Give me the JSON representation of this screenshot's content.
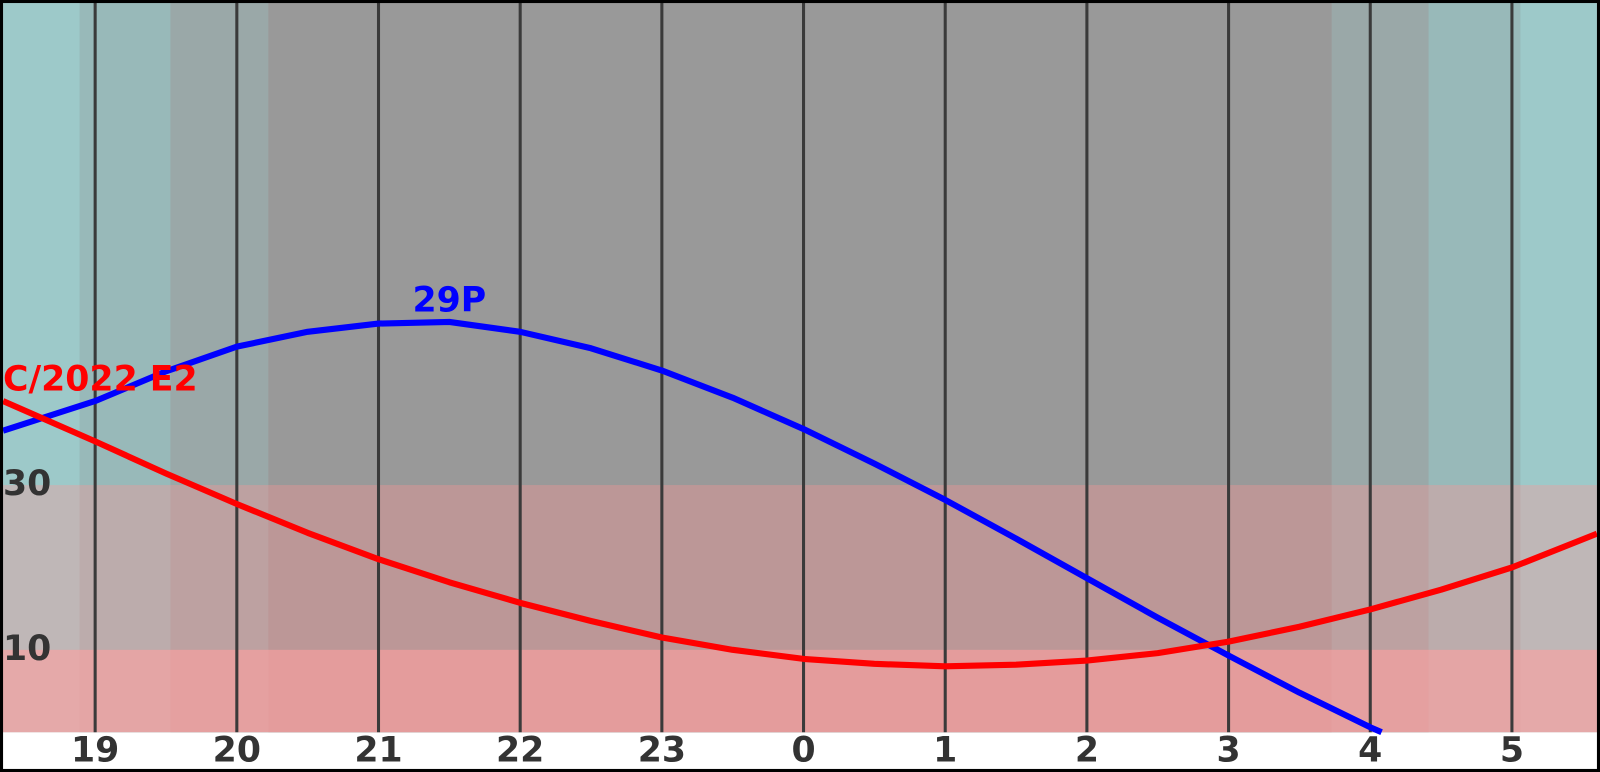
{
  "chart_data": {
    "type": "line",
    "xlim": [
      18.35,
      29.6
    ],
    "xticks": [
      19,
      20,
      21,
      22,
      23,
      {
        "value": 24,
        "label": "0"
      },
      {
        "value": 25,
        "label": "1"
      },
      {
        "value": 26,
        "label": "2"
      },
      {
        "value": 27,
        "label": "3"
      },
      {
        "value": 28,
        "label": "4"
      },
      {
        "value": 29,
        "label": "5"
      }
    ],
    "ylim": [
      0,
      88.5
    ],
    "yticks": [
      10,
      30
    ],
    "grid": true,
    "series": [
      {
        "name": "29P",
        "color": "#0000ff",
        "x": [
          18.35,
          19,
          19.5,
          20,
          20.5,
          21,
          21.5,
          22,
          22.5,
          23,
          23.5,
          24,
          24.5,
          25,
          25.5,
          26,
          26.5,
          27,
          27.5,
          28,
          28.08
        ],
        "values": [
          36.6,
          40.2,
          43.8,
          46.8,
          48.6,
          49.6,
          49.8,
          48.6,
          46.6,
          43.9,
          40.6,
          36.8,
          32.6,
          28.2,
          23.5,
          18.7,
          13.9,
          9.3,
          4.8,
          0.6,
          0.0
        ]
      },
      {
        "name": "C/2022 E2",
        "color": "#ff0000",
        "x": [
          18.35,
          19,
          19.5,
          20,
          20.5,
          21,
          21.5,
          22,
          22.5,
          23,
          23.5,
          24,
          24.5,
          25,
          25.5,
          26,
          26.5,
          27,
          27.5,
          28,
          28.5,
          29,
          29.6
        ],
        "values": [
          40.2,
          35.3,
          31.4,
          27.7,
          24.2,
          21.0,
          18.2,
          15.7,
          13.5,
          11.5,
          10.0,
          8.9,
          8.3,
          8.0,
          8.2,
          8.7,
          9.6,
          11.0,
          12.8,
          14.9,
          17.3,
          20.0,
          24.1
        ]
      }
    ]
  }
}
